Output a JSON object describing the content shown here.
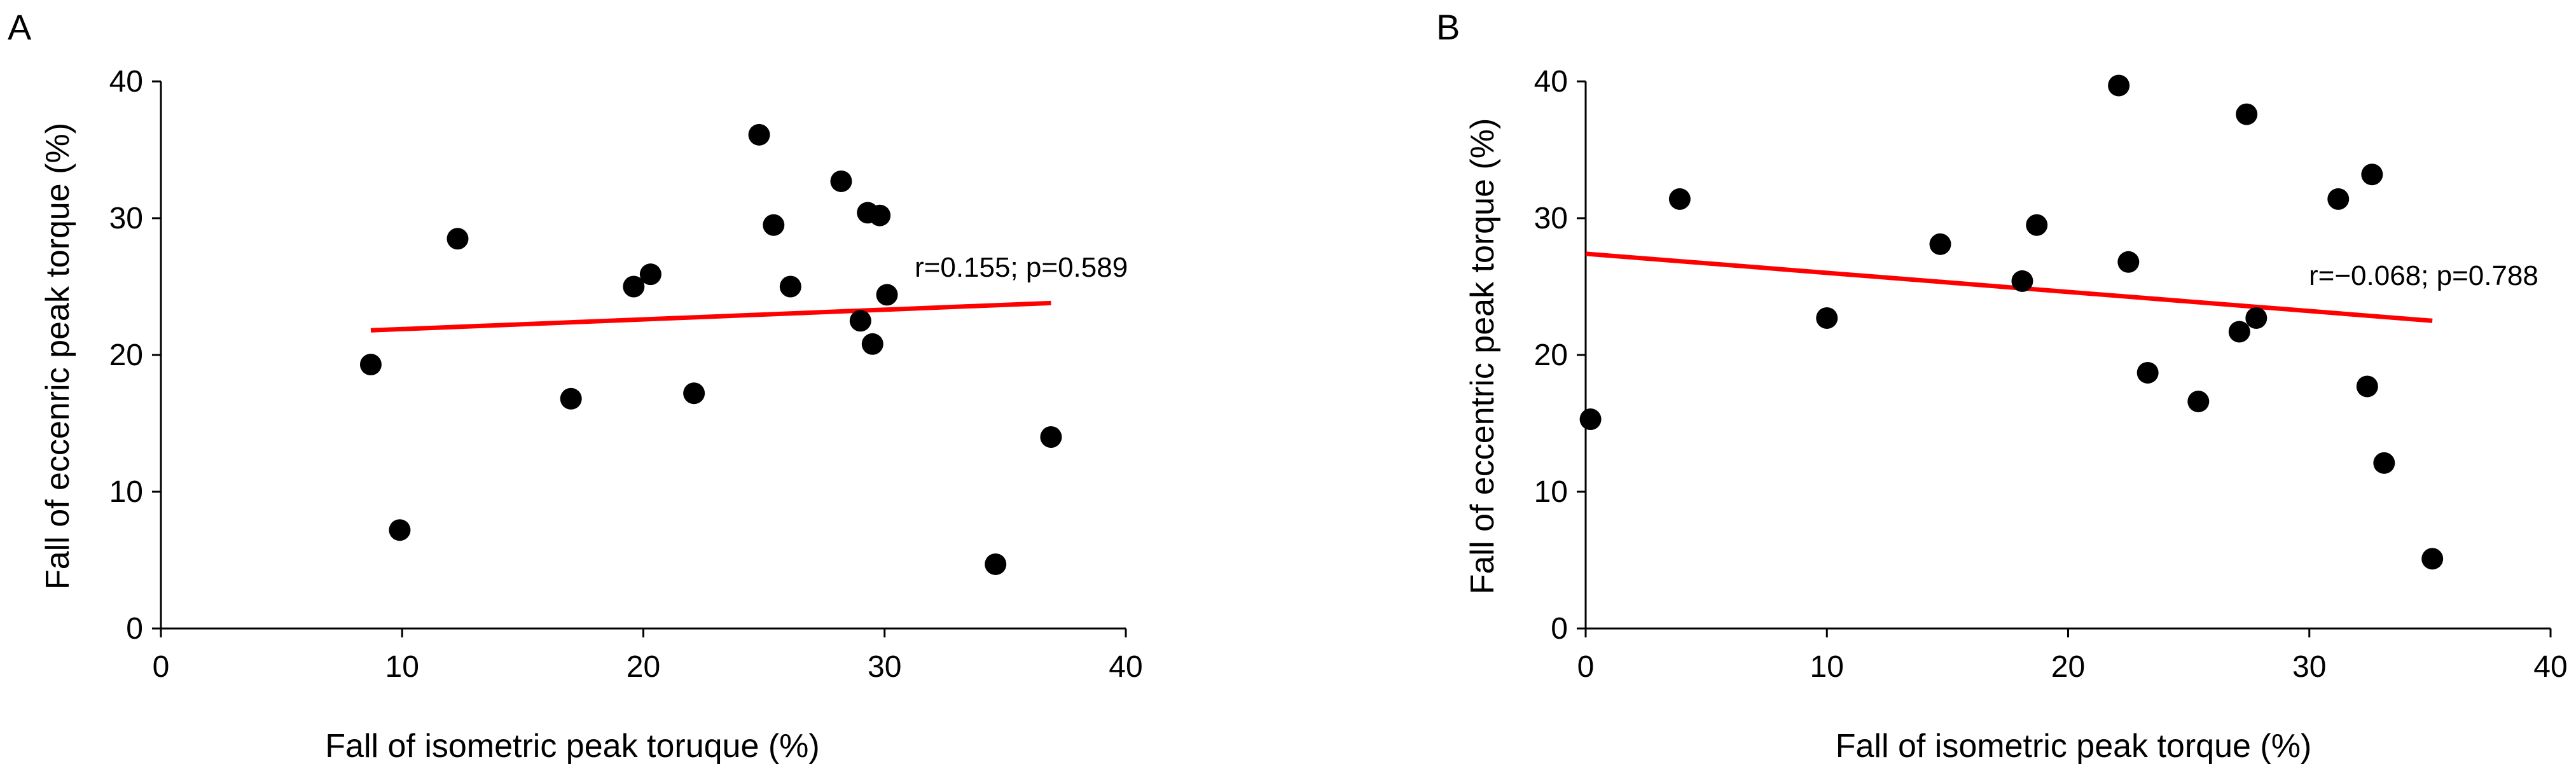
{
  "chart_data": [
    {
      "type": "scatter",
      "panel_label": "A",
      "title": "",
      "xlabel": "Fall of isometric peak toruque (%)",
      "ylabel": "Fall of eccenric peak torque (%)",
      "xlim": [
        0,
        40
      ],
      "ylim": [
        0,
        40
      ],
      "xticks": [
        0,
        10,
        20,
        30,
        40
      ],
      "yticks": [
        0,
        10,
        20,
        30,
        40
      ],
      "grid": false,
      "legend": "none",
      "marker_color": "#000000",
      "trend_color": "#ff0000",
      "points": [
        {
          "x": 8.7,
          "y": 19.3
        },
        {
          "x": 9.9,
          "y": 7.2
        },
        {
          "x": 12.3,
          "y": 28.5
        },
        {
          "x": 17.0,
          "y": 16.8
        },
        {
          "x": 19.6,
          "y": 25.0
        },
        {
          "x": 20.3,
          "y": 25.9
        },
        {
          "x": 22.1,
          "y": 17.2
        },
        {
          "x": 24.8,
          "y": 36.1
        },
        {
          "x": 25.4,
          "y": 29.5
        },
        {
          "x": 26.1,
          "y": 25.0
        },
        {
          "x": 28.2,
          "y": 32.7
        },
        {
          "x": 29.0,
          "y": 22.5
        },
        {
          "x": 29.3,
          "y": 30.4
        },
        {
          "x": 29.5,
          "y": 20.8
        },
        {
          "x": 29.8,
          "y": 30.2
        },
        {
          "x": 30.1,
          "y": 24.4
        },
        {
          "x": 34.6,
          "y": 4.7
        },
        {
          "x": 36.9,
          "y": 14.0
        }
      ],
      "trendline": {
        "x": [
          8.7,
          36.9
        ],
        "y": [
          21.8,
          23.8
        ]
      },
      "annotation": "r=0.155; p=0.589"
    },
    {
      "type": "scatter",
      "panel_label": "B",
      "title": "",
      "xlabel": "Fall of isometric peak torque (%)",
      "ylabel": "Fall of eccentric peak torque (%)",
      "xlim": [
        0,
        40
      ],
      "ylim": [
        0,
        40
      ],
      "xticks": [
        0,
        10,
        20,
        30,
        40
      ],
      "yticks": [
        0,
        10,
        20,
        30,
        40
      ],
      "grid": false,
      "legend": "none",
      "marker_color": "#000000",
      "trend_color": "#ff0000",
      "points": [
        {
          "x": 0.2,
          "y": 15.3
        },
        {
          "x": 3.9,
          "y": 31.4
        },
        {
          "x": 10.0,
          "y": 22.7
        },
        {
          "x": 14.7,
          "y": 28.1
        },
        {
          "x": 18.1,
          "y": 25.4
        },
        {
          "x": 18.7,
          "y": 29.5
        },
        {
          "x": 22.1,
          "y": 39.7
        },
        {
          "x": 22.5,
          "y": 26.8
        },
        {
          "x": 23.3,
          "y": 18.7
        },
        {
          "x": 25.4,
          "y": 16.6
        },
        {
          "x": 27.1,
          "y": 21.7
        },
        {
          "x": 27.4,
          "y": 37.6
        },
        {
          "x": 27.8,
          "y": 22.7
        },
        {
          "x": 31.2,
          "y": 31.4
        },
        {
          "x": 32.4,
          "y": 17.7
        },
        {
          "x": 32.6,
          "y": 33.2
        },
        {
          "x": 33.1,
          "y": 12.1
        },
        {
          "x": 35.1,
          "y": 5.1
        }
      ],
      "trendline": {
        "x": [
          0.0,
          35.1
        ],
        "y": [
          27.4,
          22.5
        ]
      },
      "annotation": "r=−0.068; p=0.788"
    }
  ]
}
